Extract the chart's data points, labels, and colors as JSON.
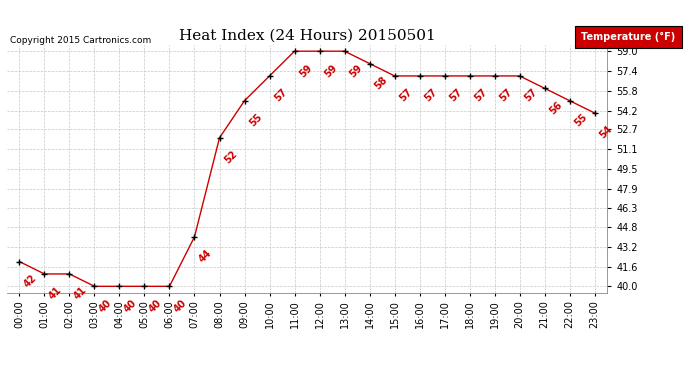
{
  "title": "Heat Index (24 Hours) 20150501",
  "copyright": "Copyright 2015 Cartronics.com",
  "legend_label": "Temperature (°F)",
  "hours": [
    0,
    1,
    2,
    3,
    4,
    5,
    6,
    7,
    8,
    9,
    10,
    11,
    12,
    13,
    14,
    15,
    16,
    17,
    18,
    19,
    20,
    21,
    22,
    23
  ],
  "values": [
    42,
    41,
    41,
    40,
    40,
    40,
    40,
    44,
    52,
    55,
    57,
    59,
    59,
    59,
    58,
    57,
    57,
    57,
    57,
    57,
    57,
    56,
    55,
    54
  ],
  "x_labels": [
    "00:00",
    "01:00",
    "02:00",
    "03:00",
    "04:00",
    "05:00",
    "06:00",
    "07:00",
    "08:00",
    "09:00",
    "10:00",
    "11:00",
    "12:00",
    "13:00",
    "14:00",
    "15:00",
    "16:00",
    "17:00",
    "18:00",
    "19:00",
    "20:00",
    "21:00",
    "22:00",
    "23:00"
  ],
  "yticks": [
    40.0,
    41.6,
    43.2,
    44.8,
    46.3,
    47.9,
    49.5,
    51.1,
    52.7,
    54.2,
    55.8,
    57.4,
    59.0
  ],
  "ylim": [
    39.5,
    59.5
  ],
  "xlim": [
    -0.5,
    23.5
  ],
  "line_color": "#cc0000",
  "marker_color": "#000000",
  "label_color": "#cc0000",
  "grid_color": "#c8c8c8",
  "background_color": "#ffffff",
  "title_fontsize": 11,
  "tick_fontsize": 7,
  "annotation_fontsize": 7,
  "copyright_fontsize": 6.5,
  "legend_bg": "#cc0000",
  "legend_text_color": "#ffffff",
  "legend_fontsize": 7
}
